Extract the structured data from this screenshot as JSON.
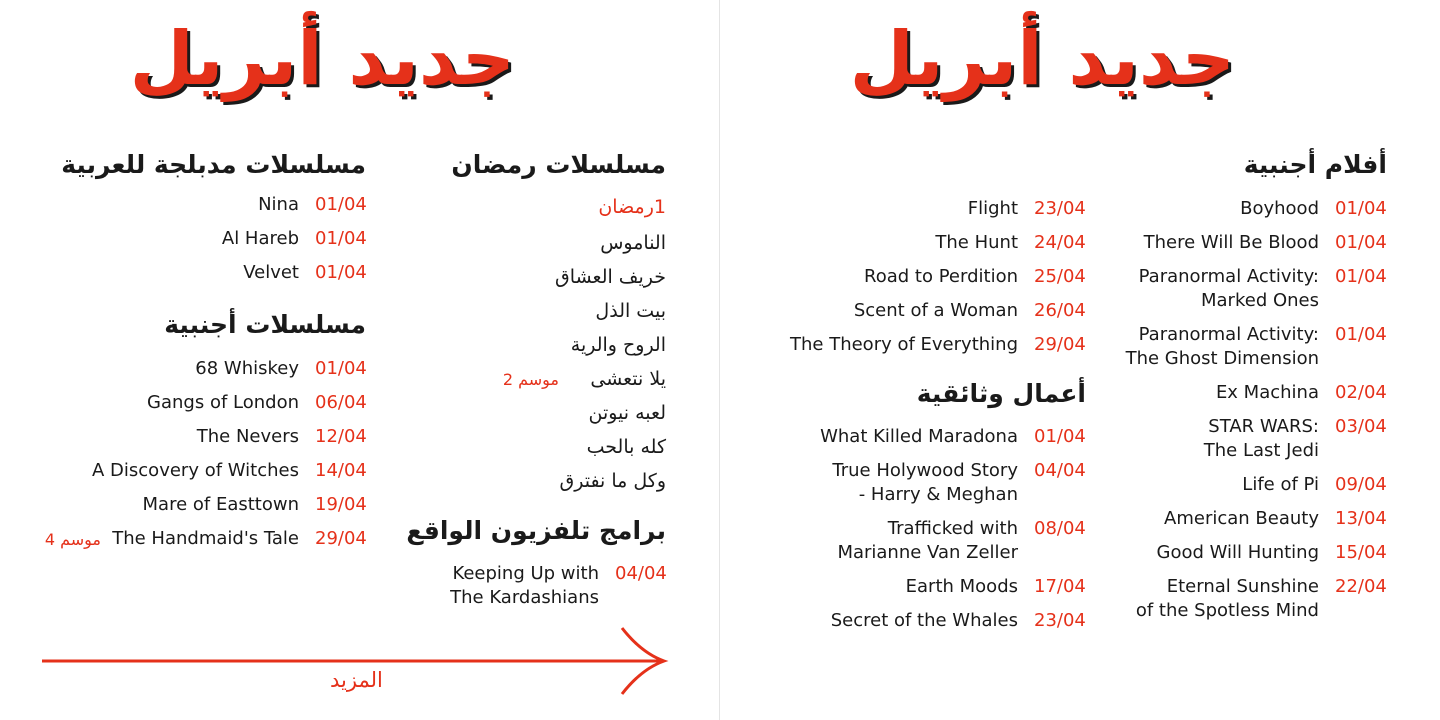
{
  "colors": {
    "accent": "#e5311a",
    "text": "#1a1a1a",
    "background": "#ffffff"
  },
  "left": {
    "title": "جديد أبريل",
    "ramadan": {
      "heading": "مسلسلات رمضان",
      "subheading": "1رمضان",
      "items": [
        "الناموس",
        "خريف العشاق",
        "بيت الذل",
        "الروح والرية",
        "يلا نتعشى",
        "لعبه نيوتن",
        "كله بالحب",
        "وكل ما نفترق"
      ],
      "season_tag": "موسم 2"
    },
    "reality": {
      "heading": "برامج تلفزيون الواقع",
      "items": [
        {
          "date": "04/04",
          "name_line1": "Keeping Up with",
          "name_line2": "The Kardashians"
        }
      ]
    },
    "dubbed": {
      "heading": "مسلسلات مدبلجة للعربية",
      "items": [
        {
          "date": "01/04",
          "name": "Nina"
        },
        {
          "date": "01/04",
          "name": "Al Hareb"
        },
        {
          "date": "01/04",
          "name": "Velvet"
        }
      ]
    },
    "foreign_series": {
      "heading": "مسلسلات أجنبية",
      "items": [
        {
          "date": "01/04",
          "name": "68 Whiskey"
        },
        {
          "date": "06/04",
          "name": "Gangs of London"
        },
        {
          "date": "12/04",
          "name": "The Nevers"
        },
        {
          "date": "14/04",
          "name": "A Discovery of Witches"
        },
        {
          "date": "19/04",
          "name": "Mare of Easttown"
        },
        {
          "date": "29/04",
          "name": "The Handmaid's Tale",
          "tag": "موسم 4"
        }
      ]
    },
    "more_label": "المزيد"
  },
  "right": {
    "title": "جديد أبريل",
    "foreign_films": {
      "heading": "أفلام أجنبية",
      "items": [
        {
          "date": "01/04",
          "name_line1": "Boyhood"
        },
        {
          "date": "01/04",
          "name_line1": "There Will Be Blood"
        },
        {
          "date": "01/04",
          "name_line1": "Paranormal Activity:",
          "name_line2": "Marked Ones"
        },
        {
          "date": "01/04",
          "name_line1": "Paranormal Activity:",
          "name_line2": "The Ghost Dimension"
        },
        {
          "date": "02/04",
          "name_line1": "Ex Machina"
        },
        {
          "date": "03/04",
          "name_line1": "STAR WARS:",
          "name_line2": "The Last Jedi"
        },
        {
          "date": "09/04",
          "name_line1": "Life of Pi"
        },
        {
          "date": "13/04",
          "name_line1": "American Beauty"
        },
        {
          "date": "15/04",
          "name_line1": "Good Will Hunting"
        },
        {
          "date": "22/04",
          "name_line1": "Eternal Sunshine",
          "name_line2": "of the Spotless Mind"
        }
      ]
    },
    "films_col2": [
      {
        "date": "23/04",
        "name": "Flight"
      },
      {
        "date": "24/04",
        "name": "The Hunt"
      },
      {
        "date": "25/04",
        "name": "Road to Perdition"
      },
      {
        "date": "26/04",
        "name": "Scent of a Woman"
      },
      {
        "date": "29/04",
        "name": "The Theory of Everything"
      }
    ],
    "documentaries": {
      "heading": "أعمال وثائقية",
      "items": [
        {
          "date": "01/04",
          "name_line1": "What Killed Maradona"
        },
        {
          "date": "04/04",
          "name_line1": "True Holywood Story",
          "name_line2": "- Harry & Meghan"
        },
        {
          "date": "08/04",
          "name_line1": "Trafficked with",
          "name_line2": "Marianne Van Zeller"
        },
        {
          "date": "17/04",
          "name_line1": "Earth Moods"
        },
        {
          "date": "23/04",
          "name_line1": "Secret of the Whales"
        }
      ]
    }
  }
}
